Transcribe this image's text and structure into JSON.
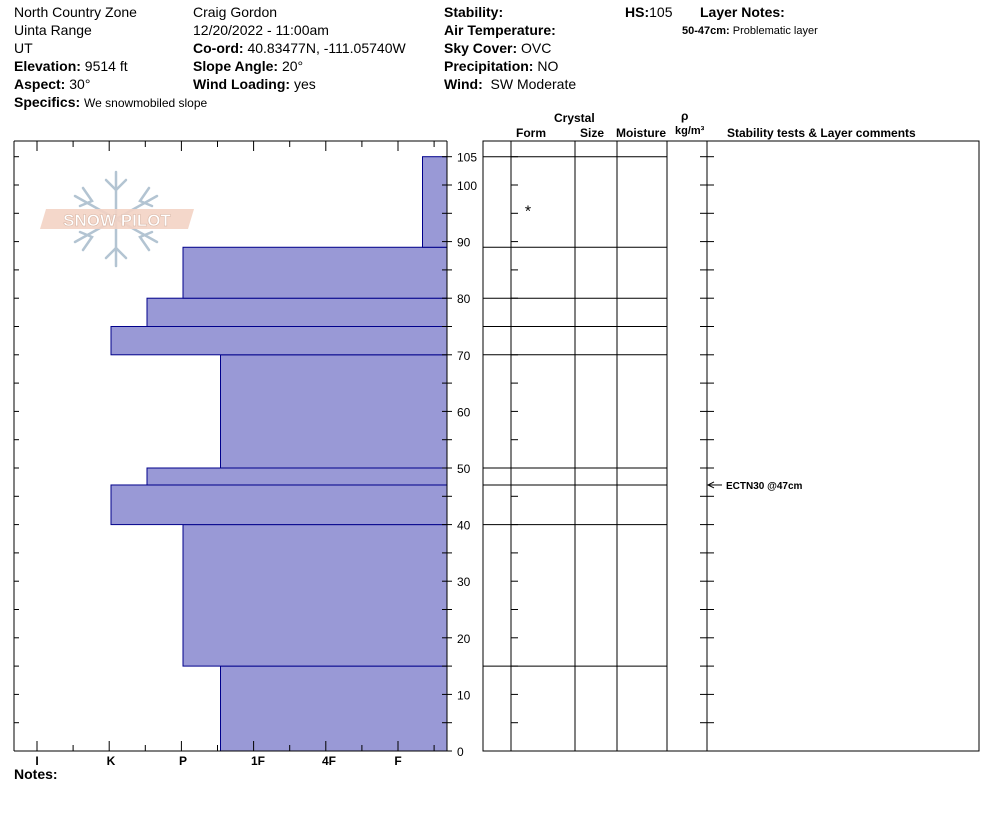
{
  "header": {
    "zone": "North Country Zone",
    "range": "Uinta Range",
    "state": "UT",
    "elevation_label": "Elevation:",
    "elevation_value": "9514 ft",
    "aspect_label": "Aspect:",
    "aspect_value": "30°",
    "specifics_label": "Specifics:",
    "specifics_value": "We snowmobiled slope",
    "observer": "Craig Gordon",
    "datetime": "12/20/2022 - 11:00am",
    "coord_label": "Co-ord:",
    "coord_value": "40.83477N, -111.05740W",
    "slope_label": "Slope Angle:",
    "slope_value": "20°",
    "wind_loading_label": "Wind Loading:",
    "wind_loading_value": "yes",
    "stability_label": "Stability:",
    "stability_value": "",
    "air_temp_label": "Air Temperature:",
    "air_temp_value": "",
    "sky_label": "Sky Cover:",
    "sky_value": "OVC",
    "precip_label": "Precipitation:",
    "precip_value": "NO",
    "wind_label": "Wind:",
    "wind_value": "SW Moderate",
    "hs_label": "HS:",
    "hs_value": "105",
    "layer_notes_label": "Layer Notes:",
    "layer_note_range": "50-47cm:",
    "layer_note_text": "Problematic layer"
  },
  "logo_text": "SNOW PILOT",
  "columns": {
    "crystal": "Crystal",
    "form": "Form",
    "size": "Size",
    "moisture": "Moisture",
    "rho": "ρ",
    "density_unit": "kg/m³",
    "comments": "Stability tests & Layer comments"
  },
  "notes_label": "Notes:",
  "colors": {
    "bar_fill": "#9999d6",
    "bar_stroke": "#00008b"
  },
  "chart_data": {
    "type": "bar",
    "orientation": "horizontal",
    "y_range": [
      0,
      108
    ],
    "y_ticks": [
      0,
      10,
      20,
      30,
      40,
      50,
      60,
      70,
      80,
      90,
      100,
      105
    ],
    "hardness_scale": [
      "I",
      "K",
      "P",
      "1F",
      "4F",
      "F"
    ],
    "layers": [
      {
        "bottom": 0,
        "top": 15,
        "hardness": "1F"
      },
      {
        "bottom": 15,
        "top": 40,
        "hardness": "4F-"
      },
      {
        "bottom": 40,
        "top": 47,
        "hardness": "P+"
      },
      {
        "bottom": 47,
        "top": 50,
        "hardness": "F+"
      },
      {
        "bottom": 50,
        "top": 70,
        "hardness": "1F"
      },
      {
        "bottom": 70,
        "top": 75,
        "hardness": "4F+"
      },
      {
        "bottom": 75,
        "top": 80,
        "hardness": "F+"
      },
      {
        "bottom": 80,
        "top": 89,
        "hardness": "F"
      },
      {
        "bottom": 89,
        "top": 105,
        "hardness": "F-"
      }
    ],
    "bar_widths_hand_units": [
      {
        "bottom": 0,
        "top": 15,
        "value": 2.5
      },
      {
        "bottom": 15,
        "top": 40,
        "value": 3.0
      },
      {
        "bottom": 40,
        "top": 47,
        "value": 4.0
      },
      {
        "bottom": 47,
        "top": 50,
        "value": 3.5
      },
      {
        "bottom": 50,
        "top": 70,
        "value": 2.5
      },
      {
        "bottom": 70,
        "top": 75,
        "value": 4.0
      },
      {
        "bottom": 75,
        "top": 80,
        "value": 3.5
      },
      {
        "bottom": 80,
        "top": 89,
        "value": 3.0
      },
      {
        "bottom": 89,
        "top": 105,
        "value": 0.5
      }
    ],
    "layer_boundaries": [
      15,
      40,
      47,
      50,
      70,
      75,
      80,
      89,
      105
    ],
    "crystal_forms": [
      {
        "depth": 96,
        "symbol": "*"
      }
    ],
    "stability_tests": [
      {
        "depth": 47,
        "text": "ECTN30 @47cm"
      }
    ]
  }
}
